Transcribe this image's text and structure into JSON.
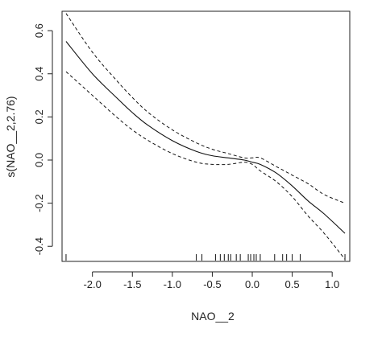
{
  "chart_data": {
    "type": "line",
    "xlabel": "NAO__2",
    "ylabel": "s(NAO__2,2.76)",
    "xlim": [
      -2.38,
      1.22
    ],
    "ylim": [
      -0.47,
      0.69
    ],
    "x_ticks": [
      -2.0,
      -1.5,
      -1.0,
      -0.5,
      0.0,
      0.5,
      1.0
    ],
    "x_tick_labels": [
      "-2.0",
      "-1.5",
      "-1.0",
      "-0.5",
      "0.0",
      "0.5",
      "1.0"
    ],
    "y_ticks": [
      -0.4,
      -0.2,
      0.0,
      0.2,
      0.4,
      0.6
    ],
    "y_tick_labels": [
      "-0.4",
      "-0.2",
      "0.0",
      "0.2",
      "0.4",
      "0.6"
    ],
    "grid": false,
    "series": [
      {
        "style": "solid",
        "x": [
          -2.33,
          -2.0,
          -1.7,
          -1.5,
          -1.3,
          -1.0,
          -0.7,
          -0.5,
          -0.3,
          -0.1,
          0.0,
          0.1,
          0.3,
          0.5,
          0.7,
          0.9,
          1.16
        ],
        "y": [
          0.55,
          0.4,
          0.29,
          0.22,
          0.16,
          0.09,
          0.04,
          0.02,
          0.01,
          0.0,
          -0.01,
          -0.02,
          -0.06,
          -0.12,
          -0.19,
          -0.25,
          -0.34
        ]
      },
      {
        "style": "dashed",
        "x": [
          -2.33,
          -2.0,
          -1.7,
          -1.5,
          -1.3,
          -1.0,
          -0.7,
          -0.5,
          -0.3,
          -0.1,
          0.0,
          0.1,
          0.3,
          0.5,
          0.7,
          0.9,
          1.16
        ],
        "y": [
          0.68,
          0.5,
          0.37,
          0.29,
          0.22,
          0.14,
          0.08,
          0.05,
          0.03,
          0.01,
          0.01,
          0.01,
          -0.03,
          -0.07,
          -0.11,
          -0.16,
          -0.2
        ]
      },
      {
        "style": "dashed",
        "x": [
          -2.33,
          -2.0,
          -1.7,
          -1.5,
          -1.3,
          -1.0,
          -0.7,
          -0.5,
          -0.3,
          -0.1,
          0.0,
          0.1,
          0.3,
          0.5,
          0.7,
          0.9,
          1.16
        ],
        "y": [
          0.41,
          0.3,
          0.2,
          0.14,
          0.09,
          0.03,
          -0.01,
          -0.02,
          -0.02,
          -0.01,
          -0.02,
          -0.05,
          -0.1,
          -0.17,
          -0.26,
          -0.34,
          -0.46
        ]
      }
    ],
    "rug": [
      -2.33,
      -0.7,
      -0.63,
      -0.46,
      -0.4,
      -0.35,
      -0.3,
      -0.27,
      -0.2,
      -0.15,
      -0.05,
      -0.02,
      0.02,
      0.05,
      0.1,
      0.28,
      0.38,
      0.43,
      0.5,
      0.6,
      1.16
    ]
  }
}
